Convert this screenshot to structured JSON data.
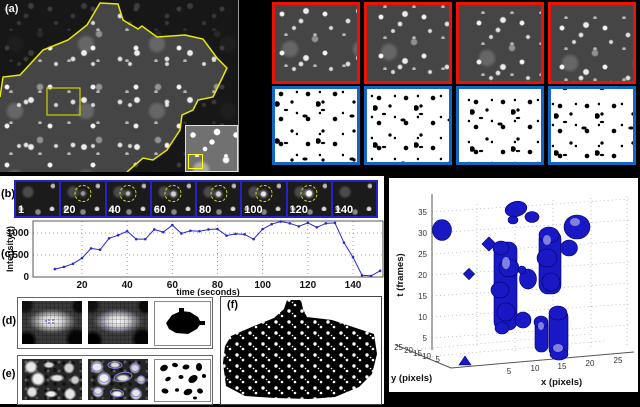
{
  "colors": {
    "red_frame": "#e81408",
    "blue_frame": "#1565c5",
    "montage_blue": "#2323c9",
    "plot_line": "#2828cc",
    "blob_blue": "#1818c4",
    "outline_yellow": "#e8e800"
  },
  "panel_a": {
    "label": "(a)"
  },
  "panel_b": {
    "label": "(b)",
    "frame_labels": [
      "1",
      "20",
      "40",
      "60",
      "80",
      "100",
      "120",
      "140"
    ]
  },
  "panel_c": {
    "label": "(c)"
  },
  "panel_d": {
    "label": "(d)"
  },
  "panel_e": {
    "label": "(e)"
  },
  "panel_f": {
    "label": "(f)"
  },
  "chart_data": [
    {
      "type": "line",
      "title": "",
      "xlabel": "time (seconds)",
      "ylabel": "Intensity(t)",
      "x_ticks": [
        20,
        40,
        60,
        80,
        100,
        120,
        140
      ],
      "y_ticks": [
        0,
        500,
        1000
      ],
      "xlim": [
        4,
        155
      ],
      "ylim": [
        0,
        1300
      ],
      "grid": "dashed",
      "x": [
        8,
        12,
        16,
        20,
        24,
        28,
        32,
        36,
        40,
        44,
        48,
        52,
        56,
        60,
        64,
        68,
        72,
        76,
        80,
        84,
        88,
        92,
        96,
        100,
        104,
        108,
        112,
        116,
        120,
        124,
        128,
        132,
        136,
        140,
        144,
        148,
        152
      ],
      "y": [
        180,
        230,
        300,
        430,
        650,
        620,
        880,
        950,
        1040,
        860,
        860,
        1080,
        1020,
        1180,
        990,
        1050,
        1040,
        1080,
        1090,
        940,
        980,
        970,
        860,
        1090,
        1200,
        1260,
        1220,
        1150,
        1230,
        1130,
        1220,
        1230,
        780,
        450,
        40,
        25,
        140
      ]
    },
    {
      "type": "scatter",
      "title": "",
      "xlabel": "x (pixels)",
      "ylabel": "y (pixels)",
      "zlabel": "t (frames)",
      "x_ticks": [
        5,
        10,
        15,
        20,
        25
      ],
      "y_ticks": [
        25,
        20,
        15,
        10,
        5
      ],
      "t_ticks": [
        35,
        30,
        25,
        20,
        15,
        10,
        5
      ],
      "xlim": [
        0,
        27
      ],
      "ylim": [
        0,
        27
      ],
      "tlim": [
        0,
        38
      ],
      "points": [
        {
          "x": 3,
          "y": 20,
          "t": 30,
          "desc": "isolated round blob"
        },
        {
          "x": 10,
          "y": 13,
          "t_range": [
            11,
            27
          ],
          "desc": "tall column"
        },
        {
          "x": 10,
          "y": 13,
          "t": 35,
          "desc": "top blob"
        },
        {
          "x": 13,
          "y": 12,
          "t_range": [
            15,
            22
          ],
          "desc": "mid blob"
        },
        {
          "x": 15,
          "y": 10,
          "t_range": [
            13,
            30
          ],
          "desc": "tall column"
        },
        {
          "x": 18,
          "y": 8,
          "t_range": [
            26,
            32
          ],
          "desc": "large right blob"
        },
        {
          "x": 17,
          "y": 10,
          "t": 21,
          "desc": "right blob"
        },
        {
          "x": 10,
          "y": 15,
          "t": 9,
          "desc": "round blob"
        },
        {
          "x": 13,
          "y": 14,
          "t_range": [
            1,
            9
          ],
          "desc": "bottom column"
        },
        {
          "x": 15,
          "y": 12,
          "t_range": [
            1,
            11
          ],
          "desc": "bottom column"
        },
        {
          "x": 5,
          "y": 18,
          "t": 1,
          "desc": "small floor blob"
        },
        {
          "x": 7,
          "y": 16,
          "t": 20,
          "desc": "tiny diamond"
        }
      ]
    }
  ]
}
